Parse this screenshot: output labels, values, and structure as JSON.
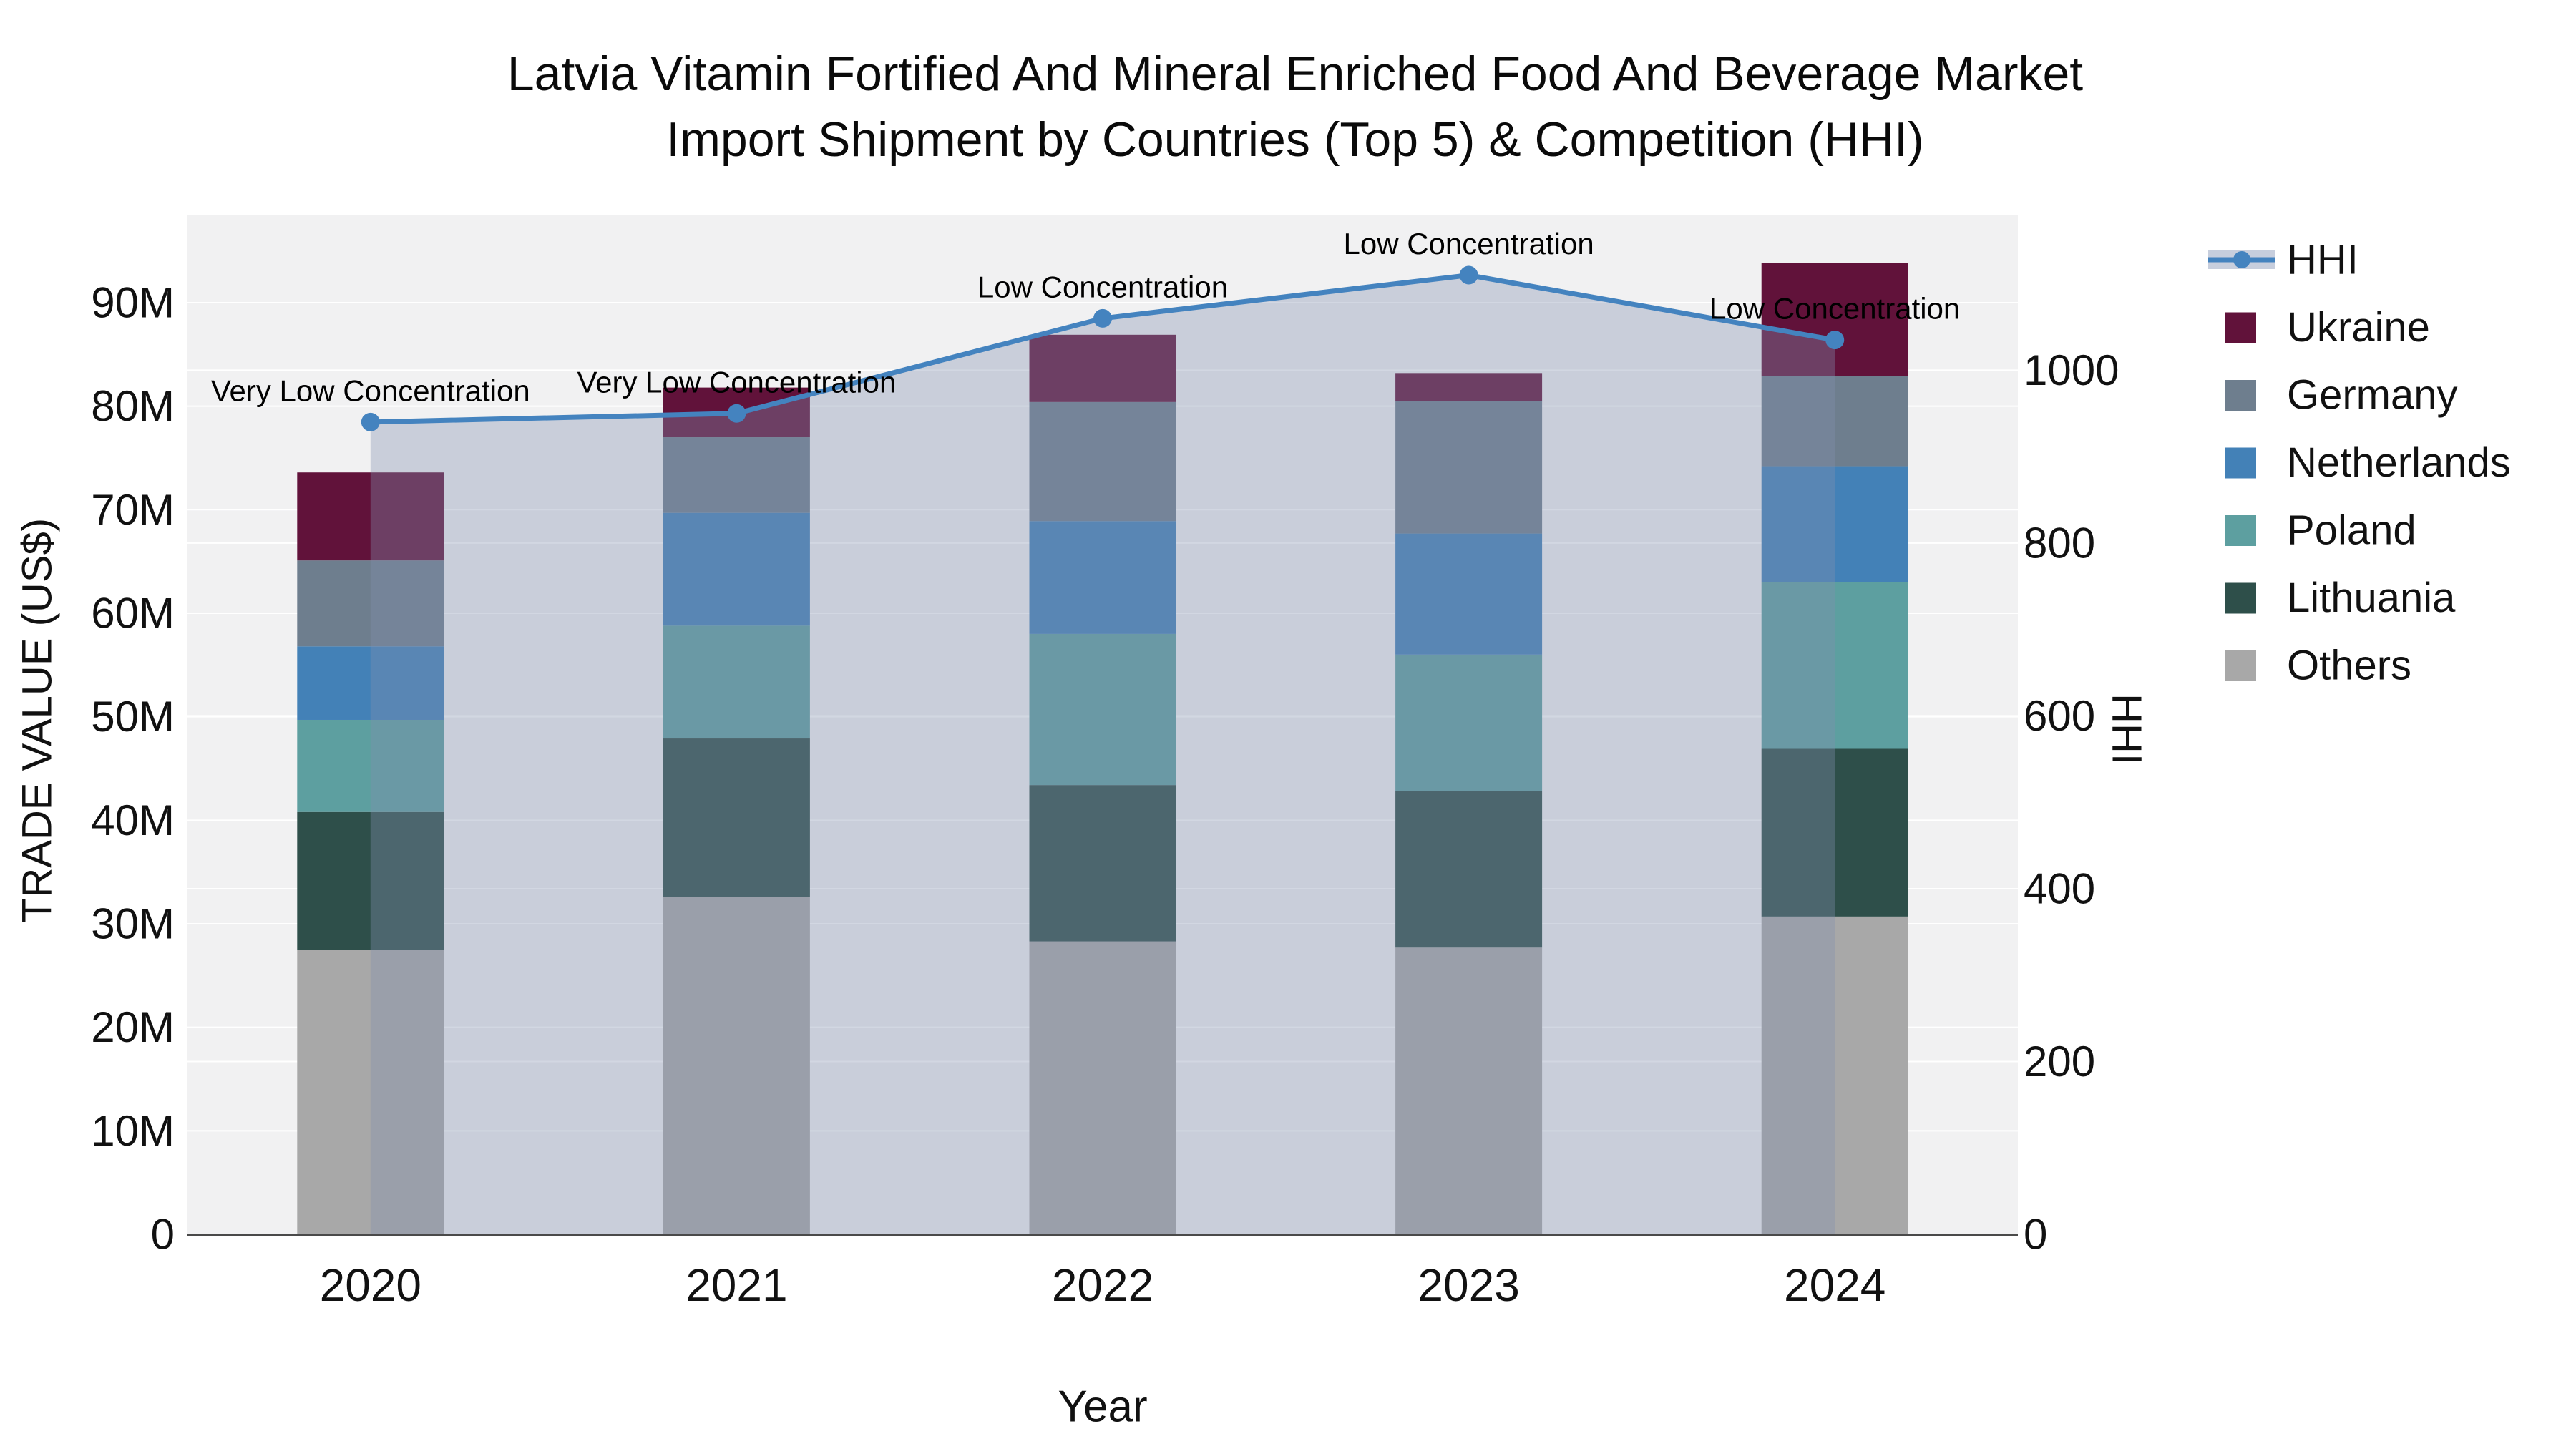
{
  "title": {
    "line1": "Latvia Vitamin Fortified And Mineral Enriched Food And Beverage Market",
    "line2": "Import Shipment by Countries (Top 5) & Competition (HHI)"
  },
  "axes": {
    "x": {
      "title": "Year",
      "categories": [
        "2020",
        "2021",
        "2022",
        "2023",
        "2024"
      ]
    },
    "y_left": {
      "title": "TRADE VALUE (US$)",
      "ticks": [
        {
          "value": 0,
          "label": "0"
        },
        {
          "value": 10,
          "label": "10M"
        },
        {
          "value": 20,
          "label": "20M"
        },
        {
          "value": 30,
          "label": "30M"
        },
        {
          "value": 40,
          "label": "40M"
        },
        {
          "value": 50,
          "label": "50M"
        },
        {
          "value": 60,
          "label": "60M"
        },
        {
          "value": 70,
          "label": "70M"
        },
        {
          "value": 80,
          "label": "80M"
        },
        {
          "value": 90,
          "label": "90M"
        }
      ]
    },
    "y_right": {
      "title": "HHI",
      "ticks": [
        {
          "value": 0,
          "label": "0"
        },
        {
          "value": 200,
          "label": "200"
        },
        {
          "value": 400,
          "label": "400"
        },
        {
          "value": 600,
          "label": "600"
        },
        {
          "value": 800,
          "label": "800"
        },
        {
          "value": 1000,
          "label": "1000"
        }
      ]
    }
  },
  "legend": [
    {
      "label": "HHI",
      "type": "line",
      "color": "#4483bf"
    },
    {
      "label": "Ukraine",
      "type": "patch",
      "color": "#61123a"
    },
    {
      "label": "Germany",
      "type": "patch",
      "color": "#6e7e8e"
    },
    {
      "label": "Netherlands",
      "type": "patch",
      "color": "#4381b7"
    },
    {
      "label": "Poland",
      "type": "patch",
      "color": "#5d9fa0"
    },
    {
      "label": "Lithuania",
      "type": "patch",
      "color": "#2e4f4a"
    },
    {
      "label": "Others",
      "type": "patch",
      "color": "#a8a8a8"
    }
  ],
  "chart_data": {
    "type": "bar+line",
    "title": "Latvia Vitamin Fortified And Mineral Enriched Food And Beverage Market Import Shipment by Countries (Top 5) & Competition (HHI)",
    "xlabel": "Year",
    "ylabel_left": "TRADE VALUE (US$)",
    "ylabel_right": "HHI",
    "categories": [
      "2020",
      "2021",
      "2022",
      "2023",
      "2024"
    ],
    "stack_order_note": "series listed bottom-to-top of the stacked bars, values in millions US$",
    "series": [
      {
        "name": "Others",
        "color": "#a8a8a8",
        "values": [
          27.5,
          32.6,
          28.3,
          27.7,
          30.7
        ]
      },
      {
        "name": "Lithuania",
        "color": "#2e4f4a",
        "values": [
          13.3,
          15.3,
          15.1,
          15.1,
          16.2
        ]
      },
      {
        "name": "Poland",
        "color": "#5d9fa0",
        "values": [
          8.9,
          10.9,
          14.6,
          13.2,
          16.1
        ]
      },
      {
        "name": "Netherlands",
        "color": "#4381b7",
        "values": [
          7.1,
          10.9,
          10.9,
          11.7,
          11.2
        ]
      },
      {
        "name": "Germany",
        "color": "#6e7e8e",
        "values": [
          8.3,
          7.3,
          11.5,
          12.8,
          8.7
        ]
      },
      {
        "name": "Ukraine",
        "color": "#61123a",
        "values": [
          8.5,
          4.8,
          6.5,
          2.7,
          10.9
        ]
      }
    ],
    "bar_totals_musd": [
      73.6,
      81.8,
      86.9,
      83.2,
      93.8
    ],
    "hhi_line": {
      "name": "HHI",
      "axis": "right",
      "color": "#4483bf",
      "area_fill": "rgba(130,145,175,0.36)",
      "values": [
        940,
        950,
        1060,
        1110,
        1035
      ]
    },
    "annotations": [
      "Very Low Concentration",
      "Very Low Concentration",
      "Low Concentration",
      "Low Concentration",
      "Low Concentration"
    ],
    "ylim_left_musd": [
      0,
      98.5
    ],
    "ylim_right_hhi": [
      0,
      1180
    ],
    "grid": true,
    "legend_position": "right"
  },
  "style": {
    "plot_bg": "#f1f1f2",
    "grid_color": "#ffffff",
    "axis_line_color": "#4a4a4a",
    "text_color": "#111111",
    "title_color": "#0a0a0a"
  }
}
